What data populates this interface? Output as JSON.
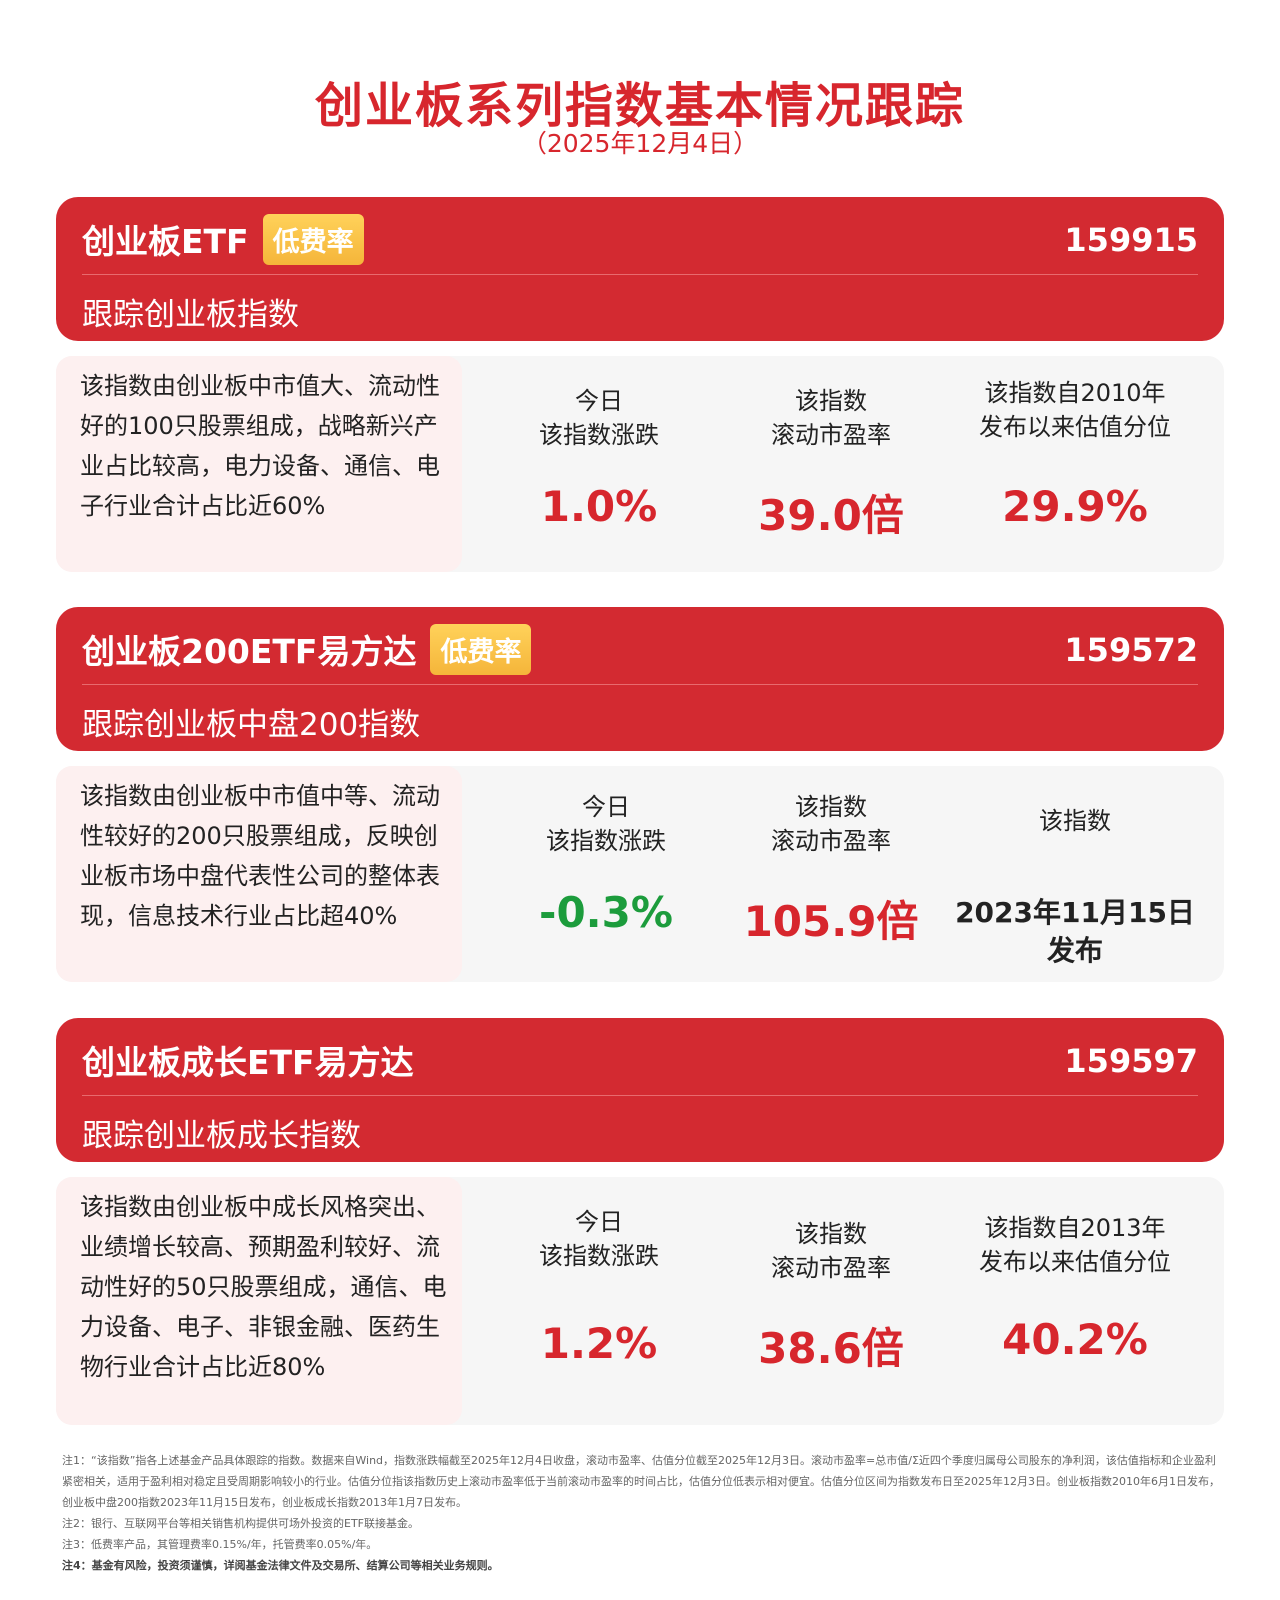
{
  "title": "创业板系列指数基本情况跟踪",
  "subtitle": "（2025年12月4日）",
  "colors": {
    "accent": "#d32a31",
    "badge": "#f5b53a",
    "down": "#1c9c3c"
  },
  "cards": [
    {
      "name": "创业板ETF",
      "badge": "低费率",
      "code": "159915",
      "track": "跟踪创业板指数",
      "desc": "该指数由创业板中市值大、流动性好的100只股票组成，战略新兴产业占比较高，电力设备、通信、电子行业合计占比近60%",
      "c1_l1": "今日",
      "c1_l2": "该指数涨跌",
      "c1_val": "1.0%",
      "c2_l1": "该指数",
      "c2_l2": "滚动市盈率",
      "c2_val": "39.0倍",
      "c3_l1": "该指数自2010年",
      "c3_l2": "发布以来估值分位",
      "c3_val": "29.9%"
    },
    {
      "name": "创业板200ETF易方达",
      "badge": "低费率",
      "code": "159572",
      "track": "跟踪创业板中盘200指数",
      "desc": "该指数由创业板中市值中等、流动性较好的200只股票组成，反映创业板市场中盘代表性公司的整体表现，信息技术行业占比超40%",
      "c1_l1": "今日",
      "c1_l2": "该指数涨跌",
      "c1_val": "-0.3%",
      "c2_l1": "该指数",
      "c2_l2": "滚动市盈率",
      "c2_val": "105.9倍",
      "c3_l1": "该指数",
      "c3_d1": "2023年11月15日",
      "c3_d2": "发布"
    },
    {
      "name": "创业板成长ETF易方达",
      "code": "159597",
      "track": "跟踪创业板成长指数",
      "desc": "该指数由创业板中成长风格突出、业绩增长较高、预期盈利较好、流动性好的50只股票组成，通信、电力设备、电子、非银金融、医药生物行业合计占比近80%",
      "c1_l1": "今日",
      "c1_l2": "该指数涨跌",
      "c1_val": "1.2%",
      "c2_l1": "该指数",
      "c2_l2": "滚动市盈率",
      "c2_val": "38.6倍",
      "c3_l1": "该指数自2013年",
      "c3_l2": "发布以来估值分位",
      "c3_val": "40.2%"
    }
  ],
  "notes": [
    "注1：“该指数”指各上述基金产品具体跟踪的指数。数据来自Wind，指数涨跌幅截至2025年12月4日收盘，滚动市盈率、估值分位截至2025年12月3日。滚动市盈率=总市值/Σ近四个季度归属母公司股东的净利润，该估值指标和企业盈利紧密相关，适用于盈利相对稳定且受周期影响较小的行业。估值分位指该指数历史上滚动市盈率低于当前滚动市盈率的时间占比，估值分位低表示相对便宜。估值分位区间为指数发布日至2025年12月3日。创业板指数2010年6月1日发布，创业板中盘200指数2023年11月15日发布，创业板成长指数2013年1月7日发布。",
    "注2：银行、互联网平台等相关销售机构提供可场外投资的ETF联接基金。",
    "注3：低费率产品，其管理费率0.15%/年，托管费率0.05%/年。",
    "注4：基金有风险，投资须谨慎，详阅基金法律文件及交易所、结算公司等相关业务规则。"
  ]
}
